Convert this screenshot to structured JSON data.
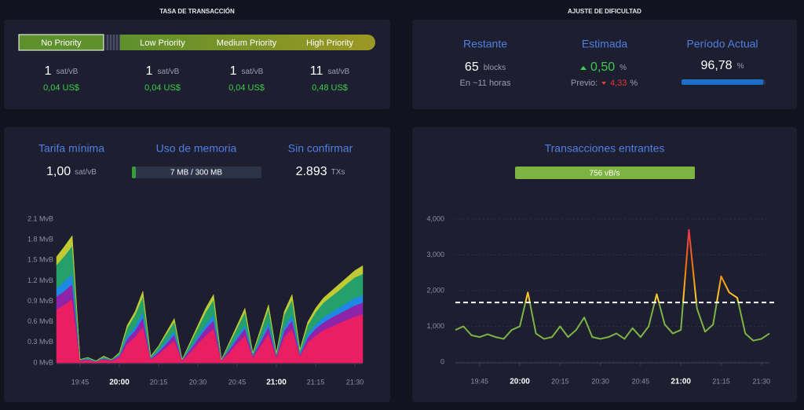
{
  "fee_panel": {
    "title": "TASA DE TRANSACCIÓN",
    "levels": [
      {
        "label": "No Priority",
        "fee": "1",
        "fee_unit": "sat/vB",
        "usd": "0,04 US$"
      },
      {
        "label": "Low Priority",
        "fee": "1",
        "fee_unit": "sat/vB",
        "usd": "0,04 US$"
      },
      {
        "label": "Medium Priority",
        "fee": "1",
        "fee_unit": "sat/vB",
        "usd": "0,04 US$"
      },
      {
        "label": "High Priority",
        "fee": "11",
        "fee_unit": "sat/vB",
        "usd": "0,48 US$"
      }
    ]
  },
  "difficulty_panel": {
    "title": "AJUSTE DE DIFICULTAD",
    "remaining": {
      "label": "Restante",
      "value": "65",
      "unit": "blocks",
      "note": "En ~11 horas"
    },
    "estimated": {
      "label": "Estimada",
      "value": "0,50",
      "unit": "%",
      "previous_label": "Previo:",
      "previous_value": "4,33",
      "previous_unit": "%"
    },
    "period": {
      "label": "Período Actual",
      "value": "96,78",
      "unit": "%"
    }
  },
  "mempool_panel": {
    "min_fee": {
      "label": "Tarifa mínima",
      "value": "1,00",
      "unit": "sat/vB"
    },
    "memory": {
      "label": "Uso de memoria",
      "value": "7 MB / 300 MB"
    },
    "unconfirmed": {
      "label": "Sin confirmar",
      "value": "2.893",
      "unit": "TXs"
    }
  },
  "incoming_panel": {
    "title": "Transacciones entrantes",
    "rate": "756 vB/s"
  },
  "chart_data": [
    {
      "type": "area",
      "stacked": true,
      "grid": false,
      "x": [
        "19:36",
        "19:39",
        "19:42",
        "19:45",
        "19:48",
        "19:51",
        "19:54",
        "19:57",
        "20:00",
        "20:03",
        "20:06",
        "20:09",
        "20:12",
        "20:15",
        "20:18",
        "20:21",
        "20:24",
        "20:27",
        "20:30",
        "20:33",
        "20:36",
        "20:39",
        "20:42",
        "20:45",
        "20:48",
        "20:51",
        "20:54",
        "20:57",
        "21:00",
        "21:03",
        "21:06",
        "21:09",
        "21:12",
        "21:15",
        "21:18",
        "21:21",
        "21:24",
        "21:27",
        "21:30",
        "21:33"
      ],
      "xticks": [
        "19:45",
        "20:00",
        "20:15",
        "20:30",
        "20:45",
        "21:00",
        "21:15",
        "21:30"
      ],
      "ylim": [
        0,
        2.1
      ],
      "yticks": [
        {
          "value": 0,
          "label": "0 MvB"
        },
        {
          "value": 0.3,
          "label": "0.3 MvB"
        },
        {
          "value": 0.6,
          "label": "0.6 MvB"
        },
        {
          "value": 0.9,
          "label": "0.9 MvB"
        },
        {
          "value": 1.2,
          "label": "1.2 MvB"
        },
        {
          "value": 1.5,
          "label": "1.5 MvB"
        },
        {
          "value": 1.8,
          "label": "1.8 MvB"
        },
        {
          "value": 2.1,
          "label": "2.1 MvB"
        }
      ],
      "series": [
        {
          "color": "#e91e63",
          "values": [
            0.78,
            0.85,
            0.93,
            0.03,
            0.04,
            0.02,
            0.05,
            0.03,
            0.08,
            0.28,
            0.38,
            0.53,
            0.05,
            0.13,
            0.23,
            0.33,
            0.03,
            0.15,
            0.28,
            0.4,
            0.5,
            0.03,
            0.15,
            0.28,
            0.4,
            0.08,
            0.25,
            0.43,
            0.08,
            0.38,
            0.5,
            0.1,
            0.3,
            0.4,
            0.48,
            0.53,
            0.58,
            0.63,
            0.68,
            0.71
          ]
        },
        {
          "color": "#8e24aa",
          "values": [
            0.19,
            0.2,
            0.22,
            0.01,
            0.01,
            0,
            0.01,
            0.01,
            0.02,
            0.07,
            0.09,
            0.13,
            0.01,
            0.03,
            0.05,
            0.08,
            0.01,
            0.04,
            0.07,
            0.1,
            0.12,
            0.01,
            0.04,
            0.07,
            0.1,
            0.02,
            0.06,
            0.1,
            0.02,
            0.09,
            0.12,
            0.02,
            0.07,
            0.1,
            0.11,
            0.13,
            0.14,
            0.15,
            0.16,
            0.17
          ]
        },
        {
          "color": "#1e88e5",
          "values": [
            0.12,
            0.14,
            0.15,
            0,
            0.01,
            0,
            0.01,
            0,
            0.01,
            0.04,
            0.06,
            0.08,
            0.01,
            0.02,
            0.04,
            0.05,
            0,
            0.02,
            0.04,
            0.06,
            0.08,
            0,
            0.02,
            0.04,
            0.06,
            0.01,
            0.04,
            0.07,
            0.01,
            0.06,
            0.08,
            0.02,
            0.05,
            0.06,
            0.08,
            0.08,
            0.09,
            0.1,
            0.11,
            0.11
          ]
        },
        {
          "color": "#26a06a",
          "values": [
            0.34,
            0.37,
            0.41,
            0.01,
            0.02,
            0.01,
            0.02,
            0.01,
            0.03,
            0.12,
            0.17,
            0.23,
            0.02,
            0.06,
            0.1,
            0.14,
            0.01,
            0.07,
            0.12,
            0.18,
            0.22,
            0.01,
            0.07,
            0.12,
            0.18,
            0.03,
            0.11,
            0.19,
            0.03,
            0.17,
            0.22,
            0.04,
            0.13,
            0.18,
            0.21,
            0.23,
            0.25,
            0.28,
            0.3,
            0.31
          ]
        },
        {
          "color": "#c0ca33",
          "values": [
            0.12,
            0.14,
            0.15,
            0,
            0,
            0,
            0.01,
            0,
            0.01,
            0.04,
            0.05,
            0.08,
            0.01,
            0.01,
            0.03,
            0.05,
            0,
            0.02,
            0.04,
            0.06,
            0.08,
            0,
            0.02,
            0.04,
            0.06,
            0.01,
            0.04,
            0.06,
            0.01,
            0.05,
            0.08,
            0.02,
            0.05,
            0.06,
            0.07,
            0.08,
            0.09,
            0.09,
            0.1,
            0.12
          ]
        }
      ]
    },
    {
      "type": "line",
      "grid": true,
      "x": [
        "19:36",
        "19:39",
        "19:42",
        "19:45",
        "19:48",
        "19:51",
        "19:54",
        "19:57",
        "20:00",
        "20:03",
        "20:06",
        "20:09",
        "20:12",
        "20:15",
        "20:18",
        "20:21",
        "20:24",
        "20:27",
        "20:30",
        "20:33",
        "20:36",
        "20:39",
        "20:42",
        "20:45",
        "20:48",
        "20:51",
        "20:54",
        "20:57",
        "21:00",
        "21:03",
        "21:06",
        "21:09",
        "21:12",
        "21:15",
        "21:18",
        "21:21",
        "21:24",
        "21:27",
        "21:30",
        "21:33"
      ],
      "xticks": [
        "19:45",
        "20:00",
        "20:15",
        "20:30",
        "20:45",
        "21:00",
        "21:15",
        "21:30"
      ],
      "ylim": [
        0,
        4000
      ],
      "yticks": [
        0,
        {
          "value": 1000,
          "label": "1,000"
        },
        {
          "value": 2000,
          "label": "2,000"
        },
        {
          "value": 3000,
          "label": "3,000"
        },
        {
          "value": 4000,
          "label": "4,000"
        }
      ],
      "threshold": 1667,
      "colors": {
        "normal": "#7cb342",
        "high": "#fdd835",
        "peak": "#e91e63"
      },
      "values": [
        900,
        1000,
        750,
        700,
        780,
        700,
        650,
        900,
        1000,
        1950,
        800,
        650,
        700,
        1000,
        700,
        900,
        1250,
        700,
        650,
        700,
        800,
        650,
        950,
        700,
        1000,
        1900,
        1050,
        800,
        900,
        3700,
        1500,
        850,
        1050,
        2400,
        1950,
        1800,
        800,
        600,
        650,
        800
      ]
    }
  ]
}
